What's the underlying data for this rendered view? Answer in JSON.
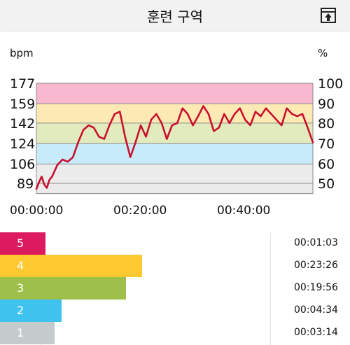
{
  "header": {
    "title": "훈련 구역",
    "export_icon": "export-icon"
  },
  "chart_data": {
    "type": "line",
    "left_unit": "bpm",
    "right_unit": "%",
    "y_ticks_bpm": [
      177,
      159,
      142,
      124,
      106,
      89
    ],
    "y_ticks_pct": [
      100,
      90,
      80,
      70,
      60,
      50
    ],
    "x_ticks": [
      "00:00:00",
      "00:20:00",
      "00:40:00"
    ],
    "ylim_bpm": [
      80,
      177
    ],
    "xlim_minutes": [
      0,
      53
    ],
    "bands": [
      {
        "from": 159,
        "to": 177,
        "color": "#f7b8d0"
      },
      {
        "from": 142,
        "to": 159,
        "color": "#fde9b4"
      },
      {
        "from": 124,
        "to": 142,
        "color": "#e2ebbd"
      },
      {
        "from": 106,
        "to": 124,
        "color": "#c8ebf9"
      },
      {
        "from": 80,
        "to": 106,
        "color": "#ececec"
      }
    ],
    "series": [
      {
        "color": "#c8102e",
        "x": [
          0,
          0.5,
          1,
          1.5,
          2,
          2.5,
          3,
          3.5,
          4,
          5,
          6,
          7,
          8,
          9,
          10,
          11,
          12,
          13,
          14,
          15,
          16,
          17,
          18,
          19,
          20,
          21,
          22,
          23,
          24,
          25,
          26,
          27,
          28,
          29,
          30,
          31,
          32,
          33,
          34,
          35,
          36,
          37,
          38,
          39,
          40,
          41,
          42,
          43,
          44,
          45,
          46,
          47,
          48,
          49,
          50,
          51,
          52,
          53
        ],
        "y": [
          84,
          90,
          95,
          88,
          85,
          92,
          95,
          100,
          105,
          110,
          108,
          112,
          125,
          136,
          140,
          138,
          130,
          128,
          140,
          150,
          152,
          130,
          112,
          125,
          140,
          130,
          145,
          150,
          142,
          128,
          140,
          142,
          155,
          150,
          140,
          148,
          157,
          150,
          135,
          138,
          150,
          142,
          150,
          155,
          145,
          140,
          152,
          148,
          155,
          150,
          145,
          140,
          155,
          150,
          148,
          150,
          138,
          125
        ]
      }
    ]
  },
  "zones": [
    {
      "number": "5",
      "time": "00:01:03",
      "fraction": 0.13,
      "color": "#dc1b5e"
    },
    {
      "number": "4",
      "time": "00:23:26",
      "fraction": 0.405,
      "color": "#fec930"
    },
    {
      "number": "3",
      "time": "00:19:56",
      "fraction": 0.36,
      "color": "#9ec04a"
    },
    {
      "number": "2",
      "time": "00:04:34",
      "fraction": 0.175,
      "color": "#3fc3ee"
    },
    {
      "number": "1",
      "time": "00:03:14",
      "fraction": 0.155,
      "color": "#c5cbcd"
    }
  ]
}
